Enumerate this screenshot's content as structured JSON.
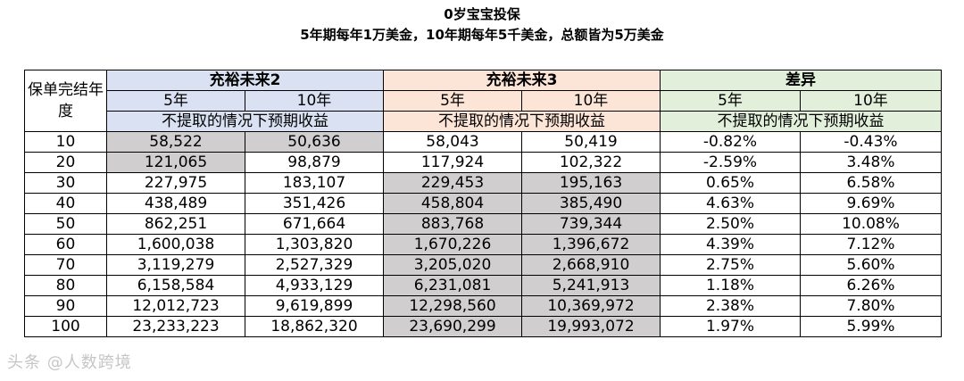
{
  "title": "0岁宝宝投保",
  "subtitle": "5年期每年1万美金，10年期每年5千美金，总额皆为5万美金",
  "table": {
    "corner_label": "保单完结年度",
    "groups": [
      "充裕未来2",
      "充裕未来3",
      "差异"
    ],
    "sub_headers": [
      "5年",
      "10年",
      "5年",
      "10年",
      "5年",
      "10年"
    ],
    "note": "不提取的情况下预期收益",
    "rows": [
      {
        "year": "10",
        "cells": [
          "58,522",
          "50,636",
          "58,043",
          "50,419",
          "-0.82%",
          "-0.43%"
        ],
        "hl": [
          true,
          true,
          false,
          false,
          false,
          false
        ]
      },
      {
        "year": "20",
        "cells": [
          "121,065",
          "98,879",
          "117,924",
          "102,322",
          "-2.59%",
          "3.48%"
        ],
        "hl": [
          true,
          false,
          false,
          false,
          false,
          false
        ]
      },
      {
        "year": "30",
        "cells": [
          "227,975",
          "183,107",
          "229,453",
          "195,163",
          "0.65%",
          "6.58%"
        ],
        "hl": [
          false,
          false,
          true,
          true,
          false,
          false
        ]
      },
      {
        "year": "40",
        "cells": [
          "438,489",
          "351,426",
          "458,804",
          "385,490",
          "4.63%",
          "9.69%"
        ],
        "hl": [
          false,
          false,
          true,
          true,
          false,
          false
        ]
      },
      {
        "year": "50",
        "cells": [
          "862,251",
          "671,664",
          "883,768",
          "739,344",
          "2.50%",
          "10.08%"
        ],
        "hl": [
          false,
          false,
          true,
          true,
          false,
          false
        ]
      },
      {
        "year": "60",
        "cells": [
          "1,600,038",
          "1,303,820",
          "1,670,226",
          "1,396,672",
          "4.39%",
          "7.12%"
        ],
        "hl": [
          false,
          false,
          true,
          true,
          false,
          false
        ]
      },
      {
        "year": "70",
        "cells": [
          "3,119,279",
          "2,527,329",
          "3,205,020",
          "2,668,910",
          "2.75%",
          "5.60%"
        ],
        "hl": [
          false,
          false,
          true,
          true,
          false,
          false
        ]
      },
      {
        "year": "80",
        "cells": [
          "6,158,584",
          "4,933,129",
          "6,231,081",
          "5,241,913",
          "1.18%",
          "6.26%"
        ],
        "hl": [
          false,
          false,
          true,
          true,
          false,
          false
        ]
      },
      {
        "year": "90",
        "cells": [
          "12,012,723",
          "9,619,899",
          "12,298,560",
          "10,369,972",
          "2.38%",
          "7.80%"
        ],
        "hl": [
          false,
          false,
          true,
          true,
          false,
          false
        ]
      },
      {
        "year": "100",
        "cells": [
          "23,233,223",
          "18,862,320",
          "23,690,299",
          "19,993,072",
          "1.97%",
          "5.99%"
        ],
        "hl": [
          false,
          false,
          true,
          true,
          false,
          false
        ]
      }
    ]
  },
  "watermark": "头条 @人数跨境"
}
